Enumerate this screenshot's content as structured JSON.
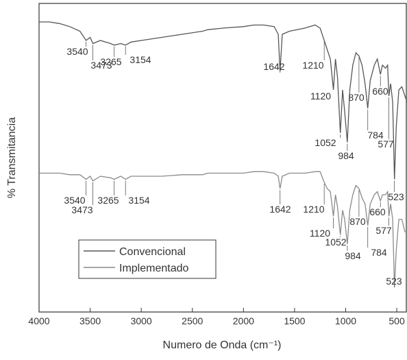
{
  "chart_data": {
    "type": "line",
    "x_label": "Numero de Onda (cm⁻¹)",
    "y_label": "% Transmitancia",
    "xlim": [
      4000,
      400
    ],
    "ylim": [
      0,
      100
    ],
    "xticks": [
      4000,
      3500,
      3000,
      2500,
      2000,
      1500,
      1000,
      500
    ],
    "legend": "lower left",
    "x": [
      4000,
      3900,
      3800,
      3700,
      3600,
      3540,
      3500,
      3473,
      3400,
      3300,
      3265,
      3200,
      3154,
      3100,
      3000,
      2800,
      2600,
      2400,
      2350,
      2200,
      2000,
      1900,
      1800,
      1700,
      1660,
      1642,
      1620,
      1550,
      1400,
      1300,
      1250,
      1210,
      1180,
      1150,
      1120,
      1100,
      1080,
      1052,
      1030,
      1010,
      984,
      960,
      930,
      900,
      870,
      840,
      810,
      784,
      760,
      720,
      690,
      660,
      640,
      610,
      590,
      577,
      560,
      540,
      523,
      505,
      480,
      450,
      420,
      400
    ],
    "series": [
      {
        "name": "Convencional",
        "color": "#555555",
        "values": [
          94,
          94,
          93.5,
          92.5,
          91,
          88,
          89,
          87,
          88,
          87,
          86.5,
          87,
          86.5,
          87.5,
          88,
          89,
          90,
          91,
          91.5,
          92,
          92.5,
          93,
          93,
          92.5,
          90,
          78,
          90,
          91,
          92,
          93,
          92,
          88,
          85,
          82,
          72,
          82,
          76,
          58,
          72,
          65,
          55,
          72,
          80,
          84,
          83,
          80,
          74,
          66,
          75,
          80,
          82,
          77,
          80,
          79,
          80,
          70,
          74,
          68,
          43,
          60,
          72,
          73,
          70,
          68
        ],
        "peaks": [
          3540,
          3473,
          3265,
          3154,
          1642,
          1210,
          1120,
          1052,
          984,
          870,
          784,
          660,
          577,
          523
        ]
      },
      {
        "name": "Implementado",
        "color": "#8a8a8a",
        "values": [
          45,
          45,
          45,
          44.5,
          44.5,
          43,
          44,
          42.5,
          44,
          43.5,
          43,
          44,
          43,
          44,
          44,
          44,
          44.5,
          44.5,
          45,
          45,
          45,
          45.5,
          45.5,
          45,
          44,
          40,
          44,
          45,
          45,
          45.5,
          45.5,
          42,
          40,
          39,
          31,
          38,
          34,
          25,
          33,
          30,
          22,
          33,
          38,
          41,
          40,
          37,
          35,
          28,
          35,
          38,
          39,
          36,
          38,
          38,
          39,
          31,
          35,
          30,
          8,
          20,
          30,
          30,
          26,
          26
        ],
        "peaks": [
          3540,
          3473,
          3265,
          3154,
          1642,
          1210,
          1120,
          1052,
          984,
          870,
          784,
          660,
          577,
          523
        ]
      }
    ]
  }
}
